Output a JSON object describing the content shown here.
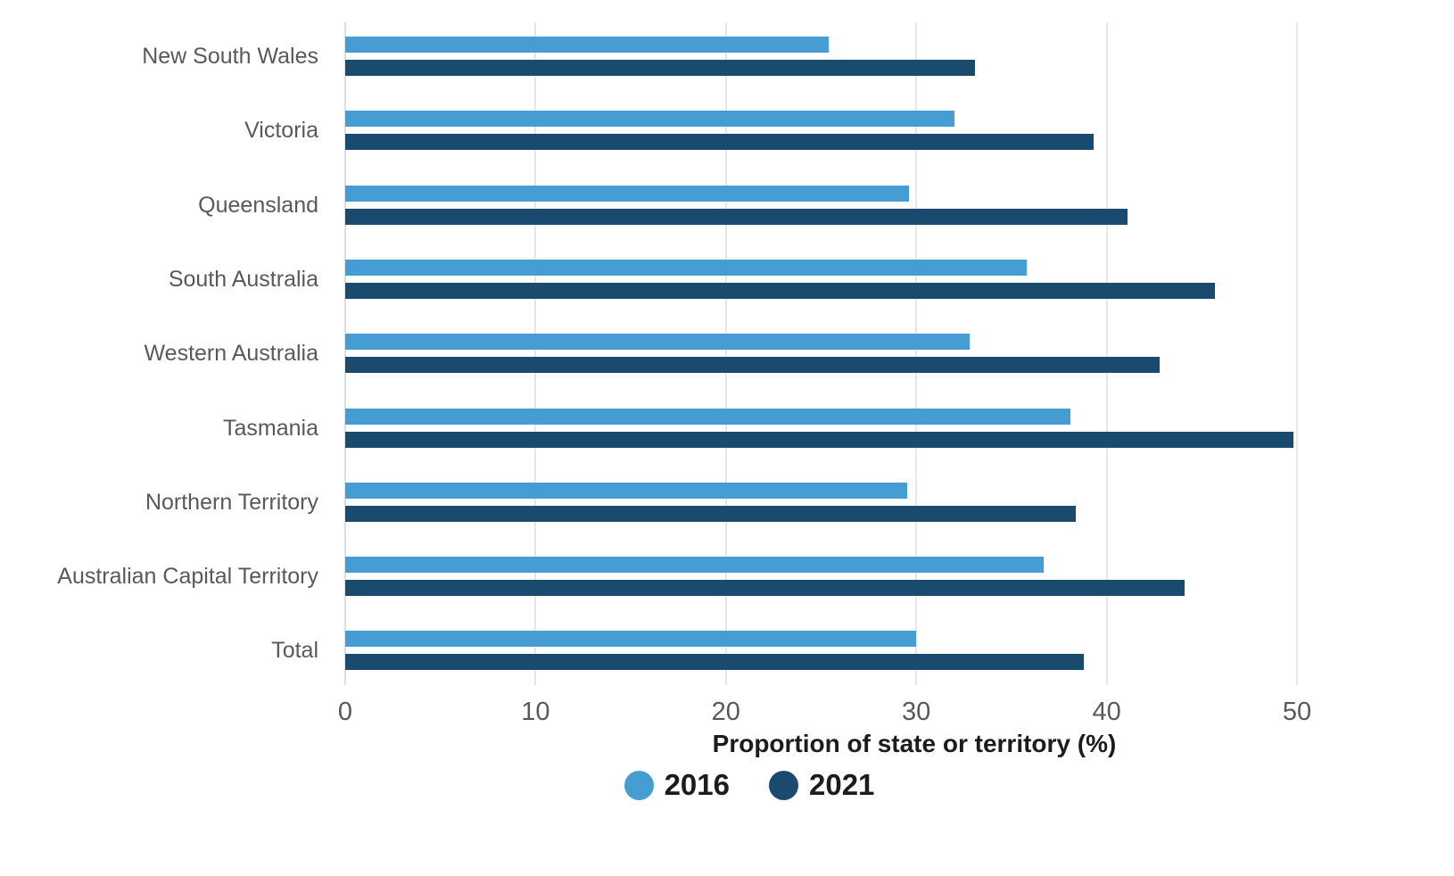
{
  "chart_data": {
    "type": "bar",
    "orientation": "horizontal",
    "title": "",
    "xlabel": "Proportion of state or territory (%)",
    "ylabel": "",
    "xlim": [
      0,
      55
    ],
    "xticks": [
      0,
      10,
      20,
      30,
      40,
      50
    ],
    "grid": "vertical gridlines at x ticks, light gray",
    "legend_position": "bottom center",
    "categories": [
      "New South Wales",
      "Victoria",
      "Queensland",
      "South Australia",
      "Western Australia",
      "Tasmania",
      "Northern Territory",
      "Australian Capital Territory",
      "Total"
    ],
    "series": [
      {
        "name": "2016",
        "color": "#459dd3",
        "values": [
          25.4,
          32.0,
          29.6,
          35.8,
          32.8,
          38.1,
          29.5,
          36.7,
          30.0
        ]
      },
      {
        "name": "2021",
        "color": "#1a4a6e",
        "values": [
          33.1,
          39.3,
          41.1,
          45.7,
          42.8,
          49.8,
          38.4,
          44.1,
          38.8
        ]
      }
    ],
    "colors": {
      "background": "#ffffff",
      "gridline": "#e7e7e7",
      "zero_axis_line": "#d9e0e6",
      "tick_label": "#595959",
      "category_label": "#595959",
      "axis_title": "#1c1c1e",
      "legend_text": "#1c1c1e"
    }
  }
}
